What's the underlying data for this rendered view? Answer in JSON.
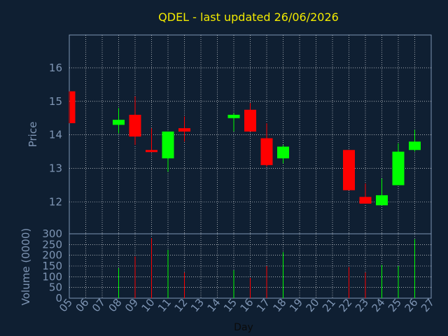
{
  "chart_data": {
    "type": "candlestick",
    "title": "QDEL - last updated 26/06/2026",
    "xlabel": "Day",
    "ylabel": "Price",
    "volume_label": "Volume (0000)",
    "x_ticks": [
      "05",
      "06",
      "07",
      "08",
      "09",
      "10",
      "11",
      "12",
      "13",
      "14",
      "15",
      "16",
      "17",
      "18",
      "19",
      "20",
      "21",
      "22",
      "23",
      "24",
      "25",
      "26",
      "27"
    ],
    "price_ticks": [
      "12",
      "13",
      "14",
      "15",
      "16"
    ],
    "volume_ticks": [
      "0",
      "50",
      "100",
      "150",
      "200",
      "250",
      "300"
    ],
    "price_range": [
      11.05,
      16.98
    ],
    "volume_range": [
      0,
      300
    ],
    "grid": true,
    "colors": {
      "up": "#00ff00",
      "down": "#ff0000",
      "title": "#f2ea00",
      "axis": "#7e95b4",
      "grid": "#ffffff",
      "background": "#0f1f32"
    },
    "candles": [
      {
        "day": 5,
        "open": 15.3,
        "high": 15.3,
        "low": 14.35,
        "close": 14.35,
        "volume": 0
      },
      {
        "day": 8,
        "open": 14.3,
        "high": 14.8,
        "low": 14.05,
        "close": 14.45,
        "volume": 140
      },
      {
        "day": 9,
        "open": 14.6,
        "high": 15.15,
        "low": 13.7,
        "close": 13.95,
        "volume": 195
      },
      {
        "day": 10,
        "open": 13.55,
        "high": 14.2,
        "low": 13.5,
        "close": 13.5,
        "volume": 280
      },
      {
        "day": 11,
        "open": 13.3,
        "high": 14.1,
        "low": 12.9,
        "close": 14.1,
        "volume": 225
      },
      {
        "day": 12,
        "open": 14.2,
        "high": 14.55,
        "low": 13.8,
        "close": 14.1,
        "volume": 120
      },
      {
        "day": 15,
        "open": 14.5,
        "high": 14.65,
        "low": 14.1,
        "close": 14.6,
        "volume": 130
      },
      {
        "day": 16,
        "open": 14.75,
        "high": 14.95,
        "low": 14.1,
        "close": 14.1,
        "volume": 95
      },
      {
        "day": 17,
        "open": 13.9,
        "high": 14.35,
        "low": 13.05,
        "close": 13.1,
        "volume": 150
      },
      {
        "day": 18,
        "open": 13.3,
        "high": 13.7,
        "low": 13.15,
        "close": 13.65,
        "volume": 215
      },
      {
        "day": 22,
        "open": 13.55,
        "high": 13.55,
        "low": 12.35,
        "close": 12.35,
        "volume": 145
      },
      {
        "day": 23,
        "open": 12.15,
        "high": 12.55,
        "low": 11.95,
        "close": 11.95,
        "volume": 120
      },
      {
        "day": 24,
        "open": 11.9,
        "high": 12.7,
        "low": 11.9,
        "close": 12.2,
        "volume": 155
      },
      {
        "day": 25,
        "open": 12.5,
        "high": 13.75,
        "low": 12.5,
        "close": 13.5,
        "volume": 150
      },
      {
        "day": 26,
        "open": 13.55,
        "high": 14.15,
        "low": 13.5,
        "close": 13.8,
        "volume": 275
      }
    ]
  }
}
